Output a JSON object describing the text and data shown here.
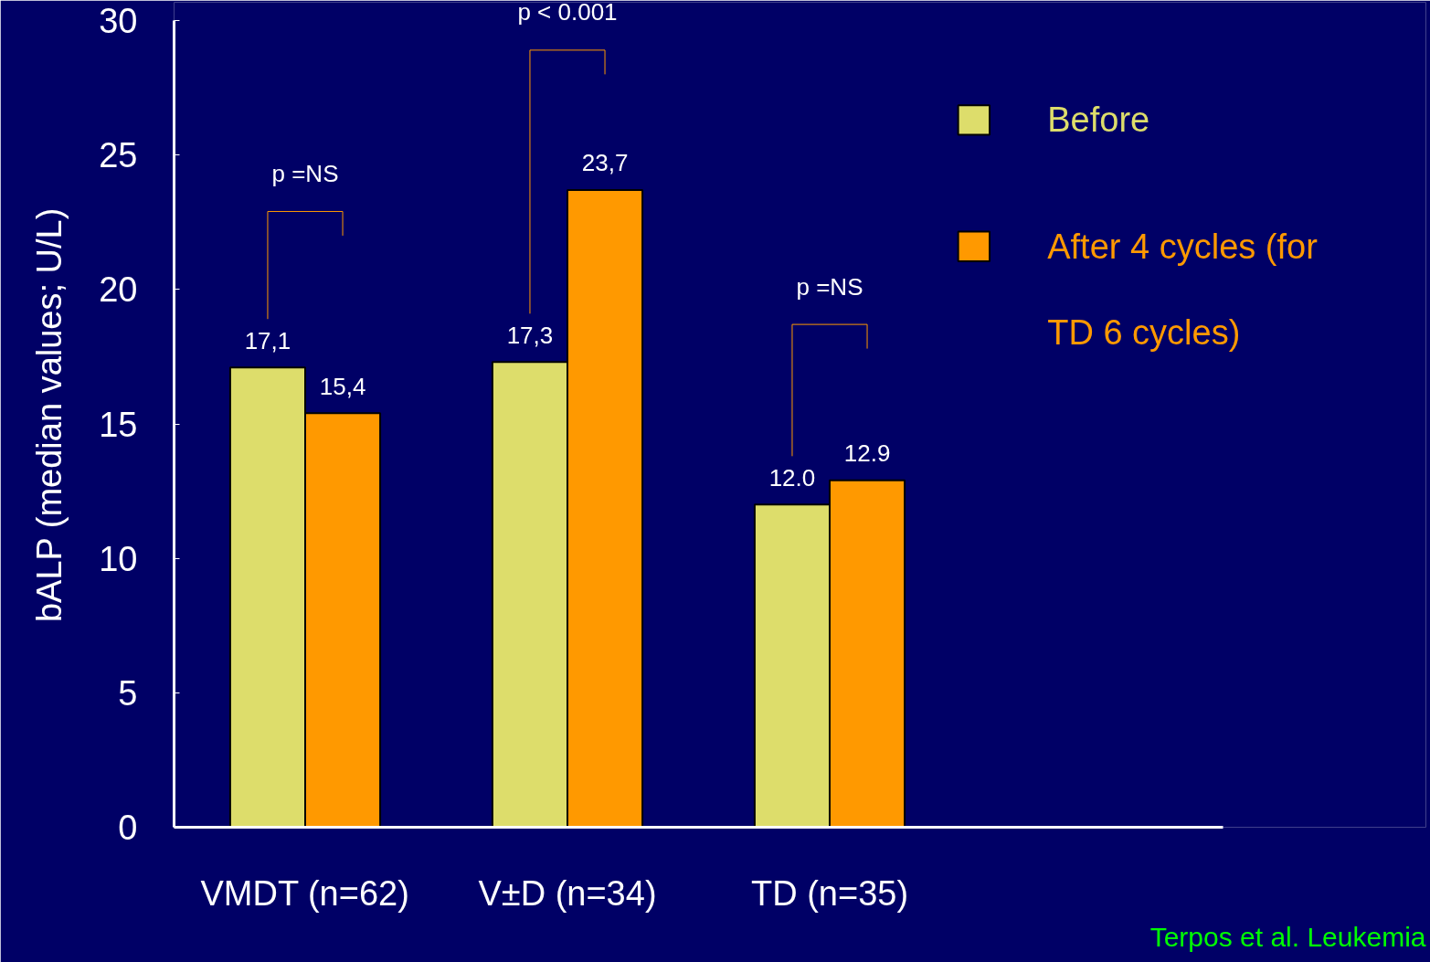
{
  "chart_data": {
    "type": "bar",
    "ylabel": "bALP (median values; U/L)",
    "categories": [
      "VMDT (n=62)",
      "V±D (n=34)",
      "TD (n=35)",
      null
    ],
    "series": [
      {
        "name": "Before",
        "color": "#dddd6b",
        "values": [
          17.1,
          17.3,
          12.0,
          null
        ],
        "value_labels": [
          "17,1",
          "17,3",
          "12.0",
          null
        ]
      },
      {
        "name": "After 4 cycles (for TD 6 cycles)",
        "color": "#ff9900",
        "values": [
          15.4,
          23.7,
          12.9,
          null
        ],
        "value_labels": [
          "15,4",
          "23,7",
          "12.9",
          null
        ]
      }
    ],
    "ylim": [
      0,
      30
    ],
    "yticks": [
      0,
      5,
      10,
      15,
      20,
      25,
      30
    ],
    "grid": false,
    "legend": "top right",
    "annotations": [
      "p =NS",
      "p < 0.001",
      "p =NS",
      "Terpos et al. Leukemia"
    ]
  }
}
